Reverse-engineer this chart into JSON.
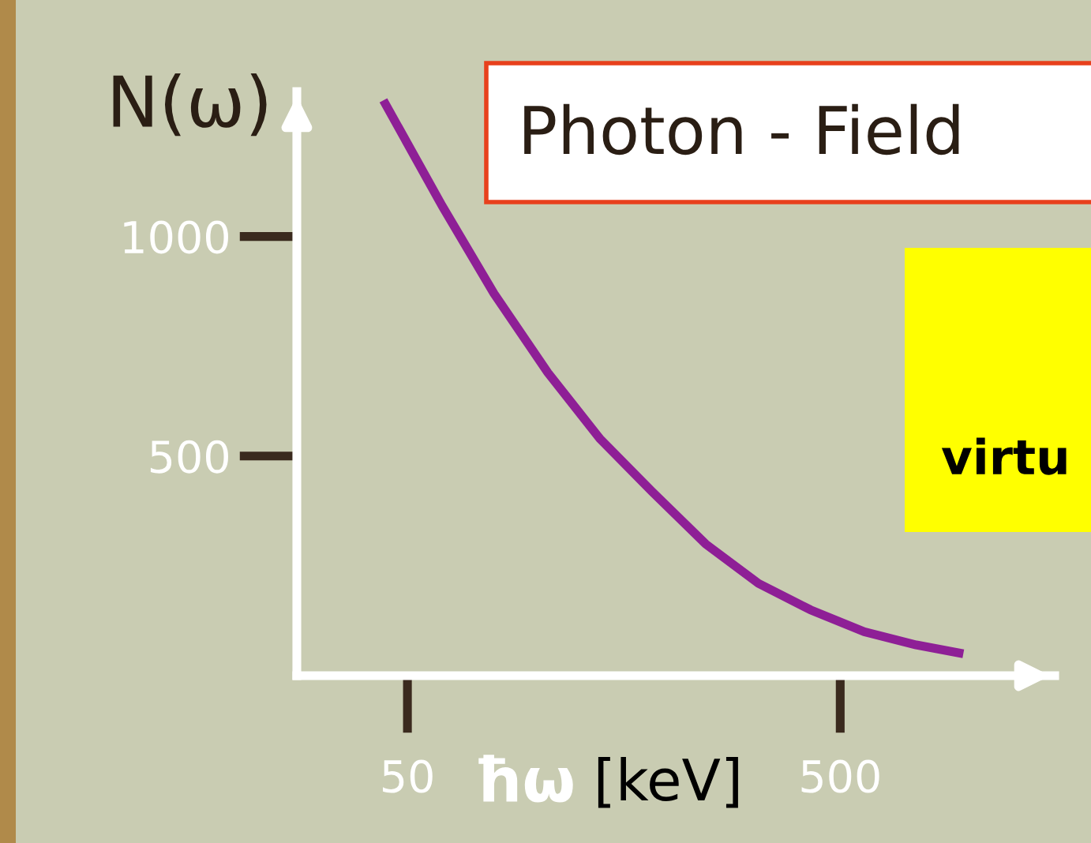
{
  "chart_data": {
    "type": "line",
    "ylabel": "N(ω)",
    "xlabel": "ħω [keV]",
    "annotations": [
      "Photon - Field",
      "virtu"
    ],
    "series": [
      {
        "color": "#8e1f96",
        "x": [
          25,
          86,
          140,
          196,
          250,
          304,
          360,
          415,
          469,
          525,
          579,
          628
        ],
        "values": [
          1310,
          1070,
          870,
          690,
          540,
          420,
          300,
          210,
          150,
          100,
          70,
          50
        ]
      }
    ],
    "xlim": [
      -65,
      723
    ],
    "ylim": [
      0,
      1330
    ],
    "xticks": [
      50,
      500
    ],
    "yticks": [
      500,
      1000
    ],
    "grid": false,
    "legend": false,
    "marker": "none",
    "line_style": "solid"
  }
}
